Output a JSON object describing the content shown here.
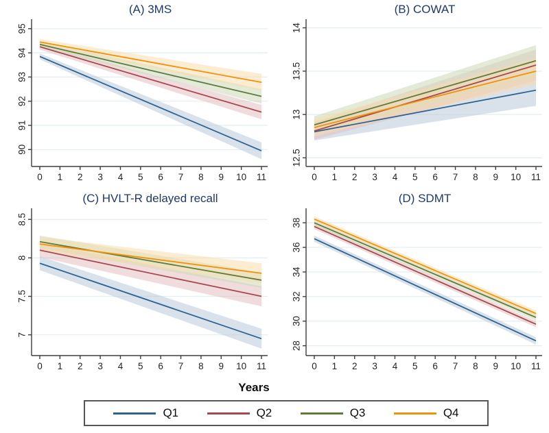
{
  "figure": {
    "xlabel": "Years",
    "background": "#ffffff",
    "title_color": "#1f3a68",
    "axis_color": "#3d3d3d",
    "grid_color": "#e2edf0",
    "tick_label_color": "#232323",
    "legend_border_color": "#555555"
  },
  "legend": {
    "items": [
      {
        "label": "Q1",
        "color": "#2e6390"
      },
      {
        "label": "Q2",
        "color": "#a6494f"
      },
      {
        "label": "Q3",
        "color": "#5e7a3c"
      },
      {
        "label": "Q4",
        "color": "#f0910c"
      }
    ]
  },
  "chart_data": [
    {
      "type": "line",
      "title": "(A) 3MS",
      "xlabel": "Years",
      "x": [
        0,
        11
      ],
      "xticks": [
        0,
        1,
        2,
        3,
        4,
        5,
        6,
        7,
        8,
        9,
        10,
        11
      ],
      "yticks": [
        90,
        91,
        92,
        93,
        94,
        95
      ],
      "ylim": [
        89.3,
        95.25
      ],
      "grid": true,
      "series": [
        {
          "name": "Q1",
          "color": "#2e6390",
          "band_color": "#b9c9d8",
          "values": [
            93.85,
            89.95
          ],
          "ci_halfwidth": [
            0.12,
            0.35
          ]
        },
        {
          "name": "Q2",
          "color": "#a6494f",
          "band_color": "#e3bfc1",
          "values": [
            94.25,
            91.55
          ],
          "ci_halfwidth": [
            0.12,
            0.3
          ]
        },
        {
          "name": "Q3",
          "color": "#5e7a3c",
          "band_color": "#ccd8b8",
          "values": [
            94.35,
            92.2
          ],
          "ci_halfwidth": [
            0.12,
            0.3
          ]
        },
        {
          "name": "Q4",
          "color": "#f0910c",
          "band_color": "#f8dcad",
          "values": [
            94.45,
            92.78
          ],
          "ci_halfwidth": [
            0.12,
            0.35
          ]
        }
      ]
    },
    {
      "type": "line",
      "title": "(B) COWAT",
      "xlabel": "Years",
      "x": [
        0,
        11
      ],
      "xticks": [
        0,
        1,
        2,
        3,
        4,
        5,
        6,
        7,
        8,
        9,
        10,
        11
      ],
      "yticks": [
        12.5,
        13,
        13.5,
        14
      ],
      "ylim": [
        12.4,
        14.06
      ],
      "grid": true,
      "series": [
        {
          "name": "Q1",
          "color": "#2e6390",
          "band_color": "#b9c9d8",
          "values": [
            12.8,
            13.28
          ],
          "ci_halfwidth": [
            0.1,
            0.18
          ]
        },
        {
          "name": "Q2",
          "color": "#a6494f",
          "band_color": "#e3bfc1",
          "values": [
            12.81,
            13.57
          ],
          "ci_halfwidth": [
            0.1,
            0.18
          ]
        },
        {
          "name": "Q3",
          "color": "#5e7a3c",
          "band_color": "#ccd8b8",
          "values": [
            12.88,
            13.62
          ],
          "ci_halfwidth": [
            0.1,
            0.18
          ]
        },
        {
          "name": "Q4",
          "color": "#f0910c",
          "band_color": "#f8dcad",
          "values": [
            12.85,
            13.5
          ],
          "ci_halfwidth": [
            0.1,
            0.15
          ]
        }
      ]
    },
    {
      "type": "line",
      "title": "(C) HVLT-R delayed recall",
      "xlabel": "Years",
      "x": [
        0,
        11
      ],
      "xticks": [
        0,
        1,
        2,
        3,
        4,
        5,
        6,
        7,
        8,
        9,
        10,
        11
      ],
      "yticks": [
        7,
        7.5,
        8,
        8.5
      ],
      "ylim": [
        6.73,
        8.6
      ],
      "grid": true,
      "series": [
        {
          "name": "Q1",
          "color": "#2e6390",
          "band_color": "#b9c9d8",
          "values": [
            7.93,
            6.95
          ],
          "ci_halfwidth": [
            0.09,
            0.13
          ]
        },
        {
          "name": "Q2",
          "color": "#a6494f",
          "band_color": "#e3bfc1",
          "values": [
            8.1,
            7.5
          ],
          "ci_halfwidth": [
            0.09,
            0.13
          ]
        },
        {
          "name": "Q3",
          "color": "#5e7a3c",
          "band_color": "#ccd8b8",
          "values": [
            8.21,
            7.71
          ],
          "ci_halfwidth": [
            0.08,
            0.1
          ]
        },
        {
          "name": "Q4",
          "color": "#f0910c",
          "band_color": "#f8dcad",
          "values": [
            8.18,
            7.8
          ],
          "ci_halfwidth": [
            0.09,
            0.13
          ]
        }
      ]
    },
    {
      "type": "line",
      "title": "(D) SDMT",
      "xlabel": "Years",
      "x": [
        0,
        11
      ],
      "xticks": [
        0,
        1,
        2,
        3,
        4,
        5,
        6,
        7,
        8,
        9,
        10,
        11
      ],
      "yticks": [
        28,
        30,
        32,
        34,
        36,
        38
      ],
      "ylim": [
        27.2,
        38.9
      ],
      "grid": true,
      "series": [
        {
          "name": "Q1",
          "color": "#2e6390",
          "band_color": "#b9c9d8",
          "values": [
            36.7,
            28.4
          ],
          "ci_halfwidth": [
            0.25,
            0.3
          ]
        },
        {
          "name": "Q2",
          "color": "#a6494f",
          "band_color": "#e3bfc1",
          "values": [
            37.7,
            29.75
          ],
          "ci_halfwidth": [
            0.22,
            0.25
          ]
        },
        {
          "name": "Q3",
          "color": "#5e7a3c",
          "band_color": "#ccd8b8",
          "values": [
            38.0,
            30.3
          ],
          "ci_halfwidth": [
            0.22,
            0.25
          ]
        },
        {
          "name": "Q4",
          "color": "#f0910c",
          "band_color": "#f8dcad",
          "values": [
            38.3,
            30.62
          ],
          "ci_halfwidth": [
            0.22,
            0.25
          ]
        }
      ]
    }
  ]
}
